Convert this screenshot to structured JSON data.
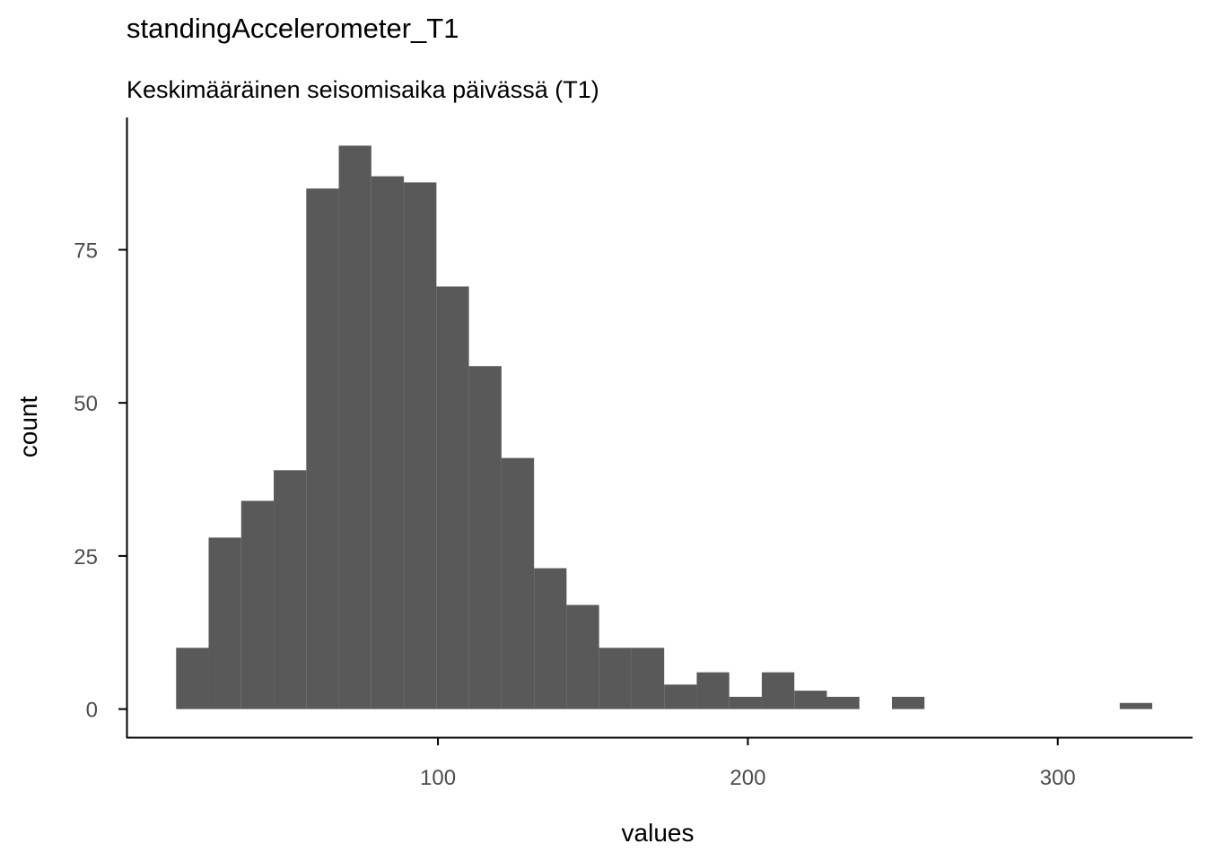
{
  "chart_data": {
    "type": "bar",
    "title": "standingAccelerometer_T1",
    "subtitle": "Keskimääräinen seisomisaika päivässä (T1)",
    "xlabel": "values",
    "ylabel": "count",
    "xlim": [
      -0.5,
      343.5
    ],
    "ylim": [
      -4.6,
      96.6
    ],
    "x_ticks": [
      100,
      200,
      300
    ],
    "y_ticks": [
      0,
      25,
      50,
      75
    ],
    "grid": false,
    "bar_color": "#595959",
    "bins": [
      {
        "x0": 15.5,
        "x1": 26.0,
        "count": 10
      },
      {
        "x0": 26.0,
        "x1": 36.5,
        "count": 28
      },
      {
        "x0": 36.5,
        "x1": 47.0,
        "count": 34
      },
      {
        "x0": 47.0,
        "x1": 57.5,
        "count": 39
      },
      {
        "x0": 57.5,
        "x1": 68.0,
        "count": 85
      },
      {
        "x0": 68.0,
        "x1": 78.5,
        "count": 92
      },
      {
        "x0": 78.5,
        "x1": 89.0,
        "count": 87
      },
      {
        "x0": 89.0,
        "x1": 99.5,
        "count": 86
      },
      {
        "x0": 99.5,
        "x1": 110.0,
        "count": 69
      },
      {
        "x0": 110.0,
        "x1": 120.5,
        "count": 56
      },
      {
        "x0": 120.5,
        "x1": 131.0,
        "count": 41
      },
      {
        "x0": 131.0,
        "x1": 141.5,
        "count": 23
      },
      {
        "x0": 141.5,
        "x1": 152.0,
        "count": 17
      },
      {
        "x0": 152.0,
        "x1": 162.5,
        "count": 10
      },
      {
        "x0": 162.5,
        "x1": 173.0,
        "count": 10
      },
      {
        "x0": 173.0,
        "x1": 183.5,
        "count": 4
      },
      {
        "x0": 183.5,
        "x1": 194.0,
        "count": 6
      },
      {
        "x0": 194.0,
        "x1": 204.5,
        "count": 2
      },
      {
        "x0": 204.5,
        "x1": 215.0,
        "count": 6
      },
      {
        "x0": 215.0,
        "x1": 225.5,
        "count": 3
      },
      {
        "x0": 225.5,
        "x1": 236.0,
        "count": 2
      },
      {
        "x0": 246.5,
        "x1": 257.0,
        "count": 2
      },
      {
        "x0": 320.0,
        "x1": 330.5,
        "count": 1
      }
    ]
  }
}
